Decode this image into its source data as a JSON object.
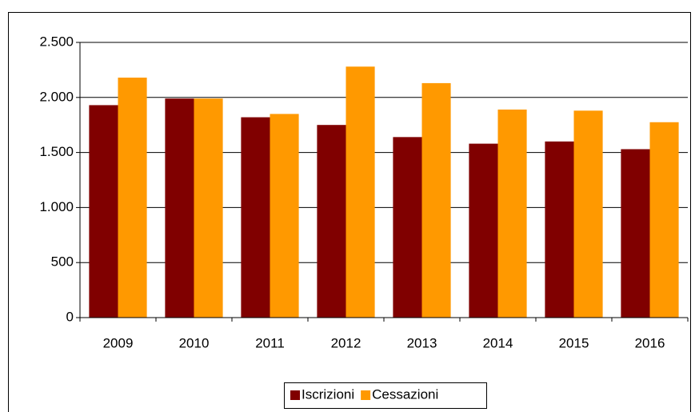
{
  "chart_data": {
    "type": "bar",
    "categories": [
      "2009",
      "2010",
      "2011",
      "2012",
      "2013",
      "2014",
      "2015",
      "2016"
    ],
    "series": [
      {
        "name": "Iscrizioni",
        "color": "#800000",
        "values": [
          1930,
          1990,
          1820,
          1750,
          1640,
          1580,
          1600,
          1530
        ]
      },
      {
        "name": "Cessazioni",
        "color": "#ff9900",
        "values": [
          2180,
          1990,
          1850,
          2280,
          2130,
          1890,
          1880,
          1775
        ]
      }
    ],
    "ylim": [
      0,
      2500
    ],
    "yticks": [
      0,
      500,
      {
        "value": 1000,
        "label": "1.000"
      },
      {
        "value": 1500,
        "label": "1.500"
      },
      {
        "value": 2000,
        "label": "2.000"
      },
      {
        "value": 2500,
        "label": "2.500"
      }
    ],
    "grid": true,
    "legend": "bottom"
  }
}
